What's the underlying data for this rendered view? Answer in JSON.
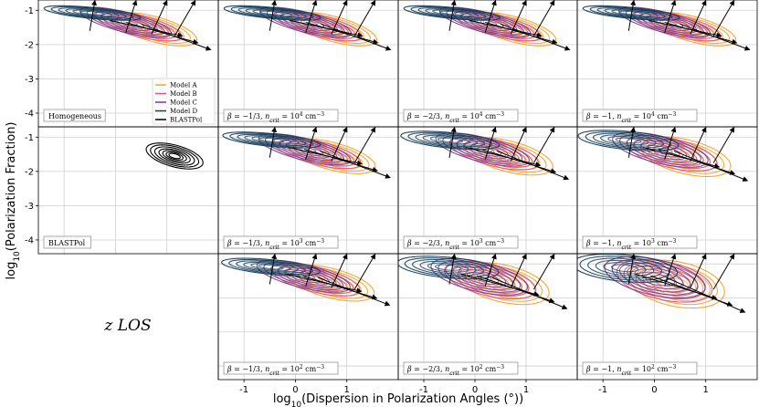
{
  "xlabel": "log$_{10}$(Dispersion in Polarization Angles ($^\\circ$))",
  "xlabel_main": "log",
  "xlabel_sub": "10",
  "xlabel_rest": "(Dispersion in Polarization Angles (°))",
  "ylabel_main": "log",
  "ylabel_sub": "10",
  "ylabel_rest": "(Polarization Fraction)",
  "los_label": "z LOS",
  "chart_data": {
    "type": "contour",
    "layout": "3 rows x 4 columns grid (bottom-left cell empty, holds LOS label)",
    "xlim": [
      -1.5,
      2.0
    ],
    "ylim": [
      -4.4,
      -0.7
    ],
    "x_ticks": [
      "-1",
      "0",
      "1"
    ],
    "y_ticks": [
      "-1",
      "-2",
      "-3",
      "-4"
    ],
    "grid": true,
    "legend": {
      "location": "bottom-right of top-left panel",
      "entries": [
        {
          "name": "Model A",
          "color": "#f4a22b"
        },
        {
          "name": "Model B",
          "color": "#d9567e"
        },
        {
          "name": "Model C",
          "color": "#7a3e8c"
        },
        {
          "name": "Model D",
          "color": "#123c5a"
        },
        {
          "name": "BLASTPol",
          "color": "#000000"
        }
      ]
    },
    "panels": [
      {
        "row": 0,
        "col": 0,
        "label": "Homogeneous",
        "kind": "model",
        "spread": 0.0
      },
      {
        "row": 0,
        "col": 1,
        "label_beta": "−1/3",
        "label_n": "4",
        "kind": "model",
        "spread": 0.0
      },
      {
        "row": 0,
        "col": 2,
        "label_beta": "−2/3",
        "label_n": "4",
        "kind": "model",
        "spread": 0.0
      },
      {
        "row": 0,
        "col": 3,
        "label_beta": "−1",
        "label_n": "4",
        "kind": "model",
        "spread": 0.0
      },
      {
        "row": 1,
        "col": 0,
        "label": "BLASTPol",
        "kind": "blastpol"
      },
      {
        "row": 1,
        "col": 1,
        "label_beta": "−1/3",
        "label_n": "3",
        "kind": "model",
        "spread": 0.1
      },
      {
        "row": 1,
        "col": 2,
        "label_beta": "−2/3",
        "label_n": "3",
        "kind": "model",
        "spread": 0.25
      },
      {
        "row": 1,
        "col": 3,
        "label_beta": "−1",
        "label_n": "3",
        "kind": "model",
        "spread": 0.4
      },
      {
        "row": 2,
        "col": 1,
        "label_beta": "−1/3",
        "label_n": "2",
        "kind": "model",
        "spread": 0.2
      },
      {
        "row": 2,
        "col": 2,
        "label_beta": "−2/3",
        "label_n": "2",
        "kind": "model",
        "spread": 0.55
      },
      {
        "row": 2,
        "col": 3,
        "label_beta": "−1",
        "label_n": "2",
        "kind": "model",
        "spread": 0.9
      }
    ],
    "models": [
      {
        "name": "Model A",
        "color": "#f4a22b",
        "center": [
          0.75,
          -1.55
        ],
        "half_axes": [
          0.9,
          0.35
        ],
        "slope": -0.45
      },
      {
        "name": "Model B",
        "color": "#d9567e",
        "center": [
          0.45,
          -1.45
        ],
        "half_axes": [
          0.9,
          0.3
        ],
        "slope": -0.42
      },
      {
        "name": "Model C",
        "color": "#7a3e8c",
        "center": [
          0.2,
          -1.35
        ],
        "half_axes": [
          0.95,
          0.28
        ],
        "slope": -0.4
      },
      {
        "name": "Model D",
        "color": "#123c5a",
        "center": [
          -0.45,
          -1.08
        ],
        "half_axes": [
          0.95,
          0.16
        ],
        "slope": -0.15
      }
    ],
    "blastpol": {
      "name": "BLASTPol",
      "color": "#000000",
      "center": [
        1.15,
        -1.55
      ],
      "half_axes": [
        0.6,
        0.3
      ],
      "slope": -0.5
    }
  }
}
